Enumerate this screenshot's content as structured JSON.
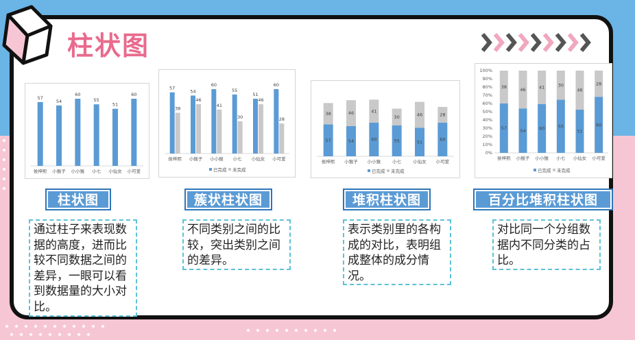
{
  "page": {
    "title": "柱状图"
  },
  "colors": {
    "done": "#5b9bd5",
    "undone": "#c9c9c9",
    "accent": "#e96a8d",
    "border": "#111111"
  },
  "sections": [
    {
      "label": "柱状图",
      "description": "通过柱子来表现数据的高度，进而比较不同数据之间的差异，一眼可以看到数据量的大小对比。"
    },
    {
      "label": "簇状柱状图",
      "description": "不同类别之间的比较，突出类别之间的差异。"
    },
    {
      "label": "堆积柱状图",
      "description": "表示类别里的各构成的对比，表明组成整体的成分情况。"
    },
    {
      "label": "百分比堆积柱状图",
      "description": "对比同一个分组数据内不同分类的占比。"
    }
  ],
  "chart_data": [
    {
      "type": "bar",
      "categories": [
        "侯梓熙",
        "小猴子",
        "小小猴",
        "小七",
        "小仙女",
        "小可爱"
      ],
      "series": [
        {
          "name": "已完成",
          "values": [
            57,
            54,
            60,
            55,
            51,
            60
          ]
        }
      ],
      "ylim": [
        0,
        60
      ]
    },
    {
      "type": "bar",
      "layout": "clustered",
      "categories": [
        "侯梓熙",
        "小猴子",
        "小小猴",
        "小七",
        "小仙女",
        "小可爱"
      ],
      "series": [
        {
          "name": "已完成",
          "values": [
            57,
            54,
            60,
            55,
            51,
            60
          ]
        },
        {
          "name": "未完成",
          "values": [
            38,
            46,
            41,
            30,
            46,
            28
          ]
        }
      ],
      "legend": [
        "已完成",
        "未完成"
      ],
      "ylim": [
        0,
        60
      ]
    },
    {
      "type": "bar",
      "layout": "stacked",
      "categories": [
        "侯梓熙",
        "小猴子",
        "小小猴",
        "小七",
        "小仙女",
        "小可爱"
      ],
      "series": [
        {
          "name": "已完成",
          "values": [
            57,
            54,
            60,
            55,
            51,
            60
          ]
        },
        {
          "name": "未完成",
          "values": [
            38,
            46,
            41,
            30,
            46,
            28
          ]
        }
      ],
      "legend": [
        "已完成",
        "未完成"
      ],
      "ylim": [
        0,
        110
      ]
    },
    {
      "type": "bar",
      "layout": "percent-stacked",
      "categories": [
        "侯梓熙",
        "小猴子",
        "小小猴",
        "小七",
        "小仙女",
        "小可爱"
      ],
      "series": [
        {
          "name": "已完成",
          "values": [
            57,
            54,
            60,
            55,
            51,
            60
          ]
        },
        {
          "name": "未完成",
          "values": [
            38,
            46,
            41,
            30,
            46,
            28
          ]
        }
      ],
      "legend": [
        "已完成",
        "未完成"
      ],
      "yticks": [
        "0%",
        "10%",
        "20%",
        "30%",
        "40%",
        "50%",
        "60%",
        "70%",
        "80%",
        "90%",
        "100%"
      ],
      "ylim": [
        0,
        1
      ]
    }
  ]
}
